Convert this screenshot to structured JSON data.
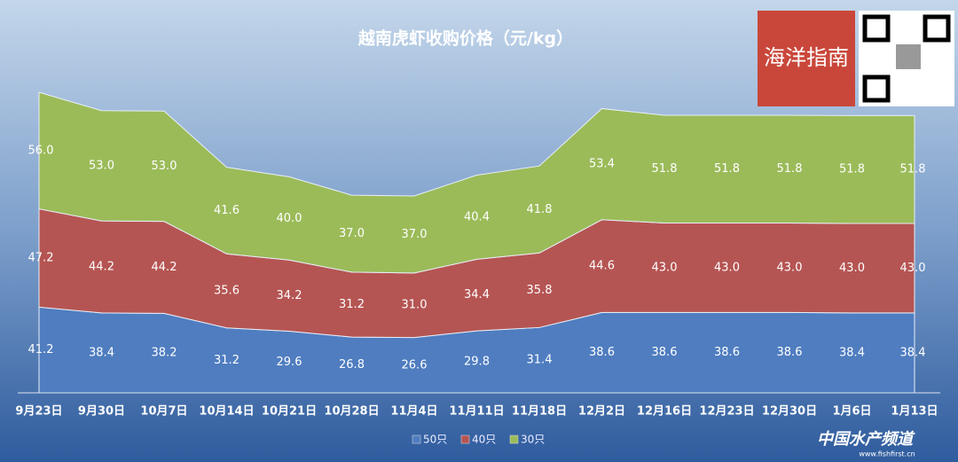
{
  "chart_data": {
    "type": "stacked-area",
    "title": "越南虎虾收购价格（元/kg）",
    "categories": [
      "9月23日",
      "9月30日",
      "10月7日",
      "10月14日",
      "10月21日",
      "10月28日",
      "11月4日",
      "11月11日",
      "11月18日",
      "12月2日",
      "12月16日",
      "12月23日",
      "12月30日",
      "1月6日",
      "1月13日"
    ],
    "series": [
      {
        "name": "50只",
        "color": "#4f7dc0",
        "values": [
          41.2,
          38.4,
          38.2,
          31.2,
          29.6,
          26.8,
          26.6,
          29.8,
          31.4,
          38.6,
          38.6,
          38.6,
          38.6,
          38.4,
          38.4
        ],
        "value_labels": [
          "41.2",
          "38.4",
          "38.2",
          "31.2",
          "29.6",
          "26.8",
          "26.6",
          "29.8",
          "31.4",
          "38.6",
          "38.6",
          "38.6",
          "38.6",
          "38.4",
          "38.4"
        ]
      },
      {
        "name": "40只",
        "color": "#b55553",
        "values": [
          47.2,
          44.2,
          44.2,
          35.6,
          34.2,
          31.2,
          31,
          34.4,
          35.8,
          44.6,
          43,
          43,
          43,
          43,
          43
        ],
        "value_labels": [
          "47.2",
          "44.2",
          "44.2",
          "35.6",
          "34.2",
          "31.2",
          "31.0",
          "34.4",
          "35.8",
          "44.6",
          "43.0",
          "43.0",
          "43.0",
          "43.0",
          "43.0"
        ]
      },
      {
        "name": "30只",
        "color": "#9bbb59",
        "values": [
          56,
          53,
          53,
          41.6,
          40,
          37,
          37,
          40.4,
          41.8,
          53.4,
          51.8,
          51.8,
          51.8,
          51.8,
          51.8
        ],
        "value_labels": [
          "56.0",
          "53.0",
          "53.0",
          "41.6",
          "40.0",
          "37.0",
          "37.0",
          "40.4",
          "41.8",
          "53.4",
          "51.8",
          "51.8",
          "51.8",
          "51.8",
          "51.8"
        ]
      }
    ],
    "ylim": [
      0,
      150
    ],
    "legend": "bottom",
    "logo_text": "海洋指南",
    "watermark": "中国水产频道",
    "watermark_url": "www.fishfirst.cn"
  }
}
